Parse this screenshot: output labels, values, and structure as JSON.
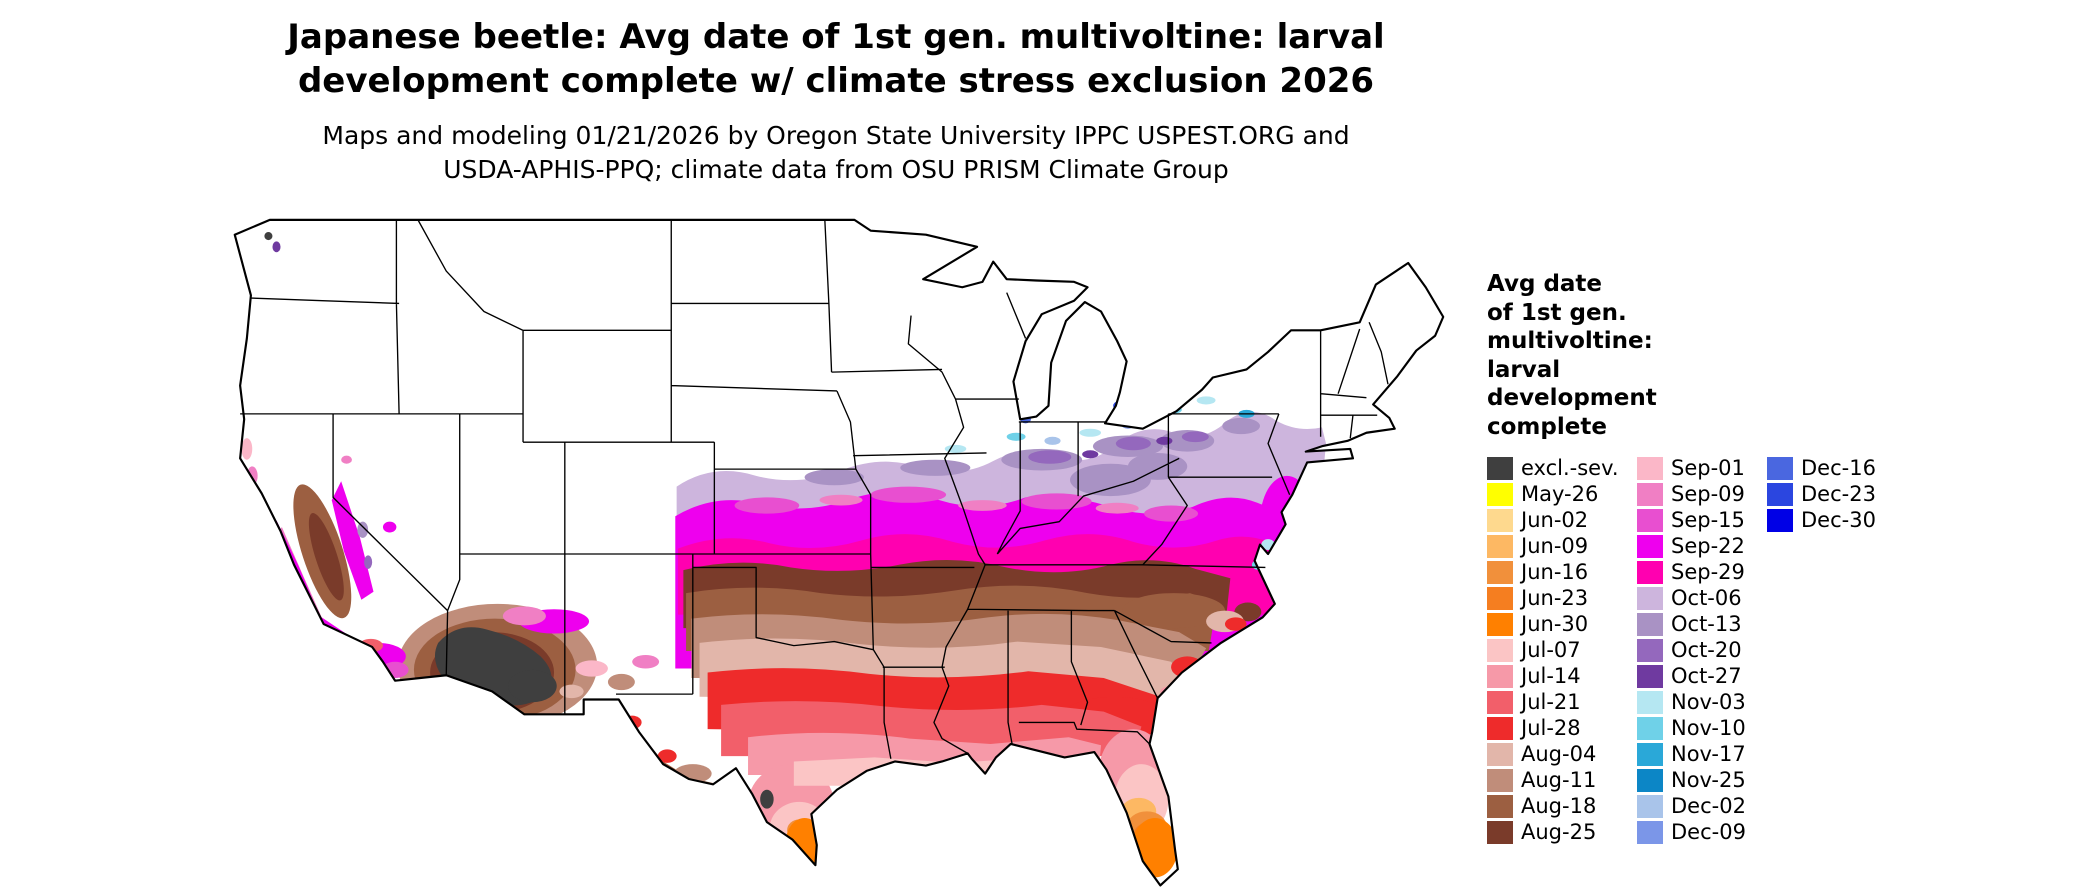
{
  "header": {
    "title": "Japanese beetle: Avg date of 1st gen. multivoltine: larval\ndevelopment complete w/ climate stress exclusion 2026",
    "subtitle": "Maps and modeling 01/21/2026 by Oregon State University IPPC USPEST.ORG and\nUSDA-APHIS-PPQ; climate data from OSU PRISM Climate Group"
  },
  "legend": {
    "title": "Avg date\nof 1st gen.\nmultivoltine:\nlarval\ndevelopment\ncomplete",
    "columns": [
      [
        {
          "label": "excl.-sev.",
          "color": "#3f3f3f"
        },
        {
          "label": "May-26",
          "color": "#ffff00"
        },
        {
          "label": "Jun-02",
          "color": "#fed98e"
        },
        {
          "label": "Jun-09",
          "color": "#fdb863"
        },
        {
          "label": "Jun-16",
          "color": "#f1903b"
        },
        {
          "label": "Jun-23",
          "color": "#f57e20"
        },
        {
          "label": "Jun-30",
          "color": "#ff8000"
        },
        {
          "label": "Jul-07",
          "color": "#fbc5c5"
        },
        {
          "label": "Jul-14",
          "color": "#f699a8"
        },
        {
          "label": "Jul-21",
          "color": "#f25f6a"
        },
        {
          "label": "Jul-28",
          "color": "#ee2b2b"
        },
        {
          "label": "Aug-04",
          "color": "#e2b6aa"
        },
        {
          "label": "Aug-11",
          "color": "#c08d7a"
        },
        {
          "label": "Aug-18",
          "color": "#9c5f41"
        },
        {
          "label": "Aug-25",
          "color": "#7a3b2a"
        }
      ],
      [
        {
          "label": "Sep-01",
          "color": "#fbb7c8"
        },
        {
          "label": "Sep-09",
          "color": "#f07fc4"
        },
        {
          "label": "Sep-15",
          "color": "#e84fd0"
        },
        {
          "label": "Sep-22",
          "color": "#ee00ee"
        },
        {
          "label": "Sep-29",
          "color": "#ff00b0"
        },
        {
          "label": "Oct-06",
          "color": "#cdb5dd"
        },
        {
          "label": "Oct-13",
          "color": "#a992c4"
        },
        {
          "label": "Oct-20",
          "color": "#9468bd"
        },
        {
          "label": "Oct-27",
          "color": "#6f3aa0"
        },
        {
          "label": "Nov-03",
          "color": "#b5e7f2"
        },
        {
          "label": "Nov-10",
          "color": "#6fd1e8"
        },
        {
          "label": "Nov-17",
          "color": "#2aa8d8"
        },
        {
          "label": "Nov-25",
          "color": "#0c86c6"
        },
        {
          "label": "Dec-02",
          "color": "#a9c4ea"
        },
        {
          "label": "Dec-09",
          "color": "#7b96e8"
        }
      ],
      [
        {
          "label": "Dec-16",
          "color": "#4a67e0"
        },
        {
          "label": "Dec-23",
          "color": "#2b46e0"
        },
        {
          "label": "Dec-30",
          "color": "#0000e6"
        }
      ]
    ]
  }
}
